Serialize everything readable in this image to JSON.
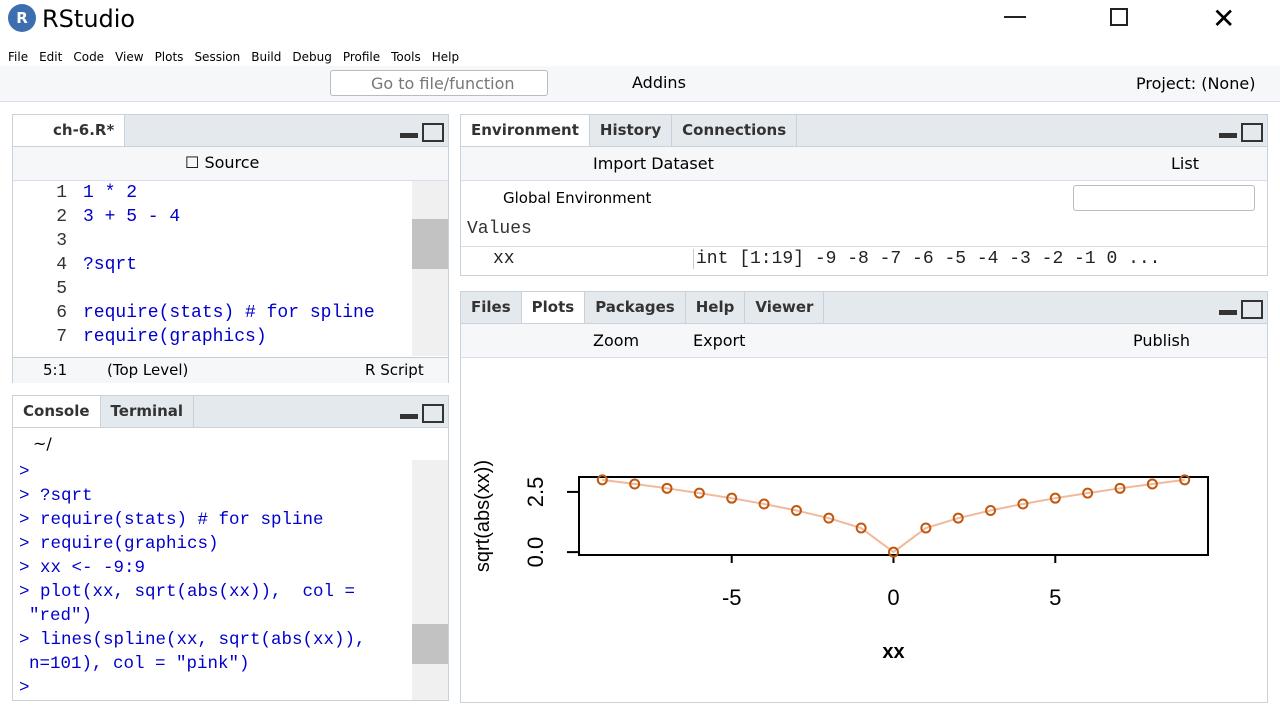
{
  "window": {
    "title": "RStudio"
  },
  "menu": [
    "File",
    "Edit",
    "Code",
    "View",
    "Plots",
    "Session",
    "Build",
    "Debug",
    "Profile",
    "Tools",
    "Help"
  ],
  "toolbar": {
    "goto": "Go to file/function",
    "addins": "Addins",
    "project": "Project: (None)"
  },
  "editor": {
    "tab": "ch-6.R*",
    "source": "Source",
    "lines": [
      {
        "num": 1,
        "code": "1 * 2"
      },
      {
        "num": 2,
        "code": "3 + 5 - 4"
      },
      {
        "num": 3
      },
      {
        "num": 4,
        "code": "?sqrt"
      },
      {
        "num": 5
      },
      {
        "num": 6,
        "code": "require(stats) # for spline"
      },
      {
        "num": 7,
        "code": "require(graphics)"
      }
    ],
    "status": {
      "position": "5:1",
      "scope": "(Top Level)",
      "filetype": "R Script"
    }
  },
  "console": {
    "tabs": [
      "Console",
      "Terminal"
    ],
    "path": "~/",
    "lines": [
      ">",
      "> ?sqrt",
      "> require(stats) # for spline",
      "> require(graphics)",
      "> xx <- -9:9",
      "> plot(xx, sqrt(abs(xx)),  col = \"red\")",
      "> lines(spline(xx, sqrt(abs(xx)), n=101), col = \"pink\")",
      ">"
    ]
  },
  "environment": {
    "tabs": [
      "Environment",
      "History",
      "Connections"
    ],
    "import": "Import Dataset",
    "view": "List",
    "scope": "Global Environment",
    "section": "Values",
    "rows": [
      {
        "name": "xx",
        "value": "int [1:19] -9 -8 -7 -6 -5 -4 -3 -2 -1 0 ..."
      }
    ]
  },
  "plots": {
    "tabs": [
      "Files",
      "Plots",
      "Packages",
      "Help",
      "Viewer"
    ],
    "zoom": "Zoom",
    "export": "Export",
    "publish": "Publish"
  },
  "chart_data": {
    "type": "scatter",
    "xlabel": "xx",
    "ylabel": "sqrt(abs(xx))",
    "x": [
      -9,
      -8,
      -7,
      -6,
      -5,
      -4,
      -3,
      -2,
      -1,
      0,
      1,
      2,
      3,
      4,
      5,
      6,
      7,
      8,
      9
    ],
    "series": [
      {
        "color": "#c0580f",
        "line_color": "#f2b89c",
        "values": [
          3,
          2.83,
          2.65,
          2.45,
          2.24,
          2,
          1.73,
          1.41,
          1,
          0,
          1,
          1.41,
          1.73,
          2,
          2.24,
          2.45,
          2.65,
          2.83,
          3
        ]
      }
    ],
    "xlim": [
      -9.72,
      9.72
    ],
    "ylim": [
      -0.12,
      3.12
    ],
    "xticks": [
      -5,
      0,
      5
    ],
    "yticks": [
      {
        "value": 0,
        "label": "0.0"
      },
      {
        "value": 2.5,
        "label": "2.5"
      }
    ]
  }
}
